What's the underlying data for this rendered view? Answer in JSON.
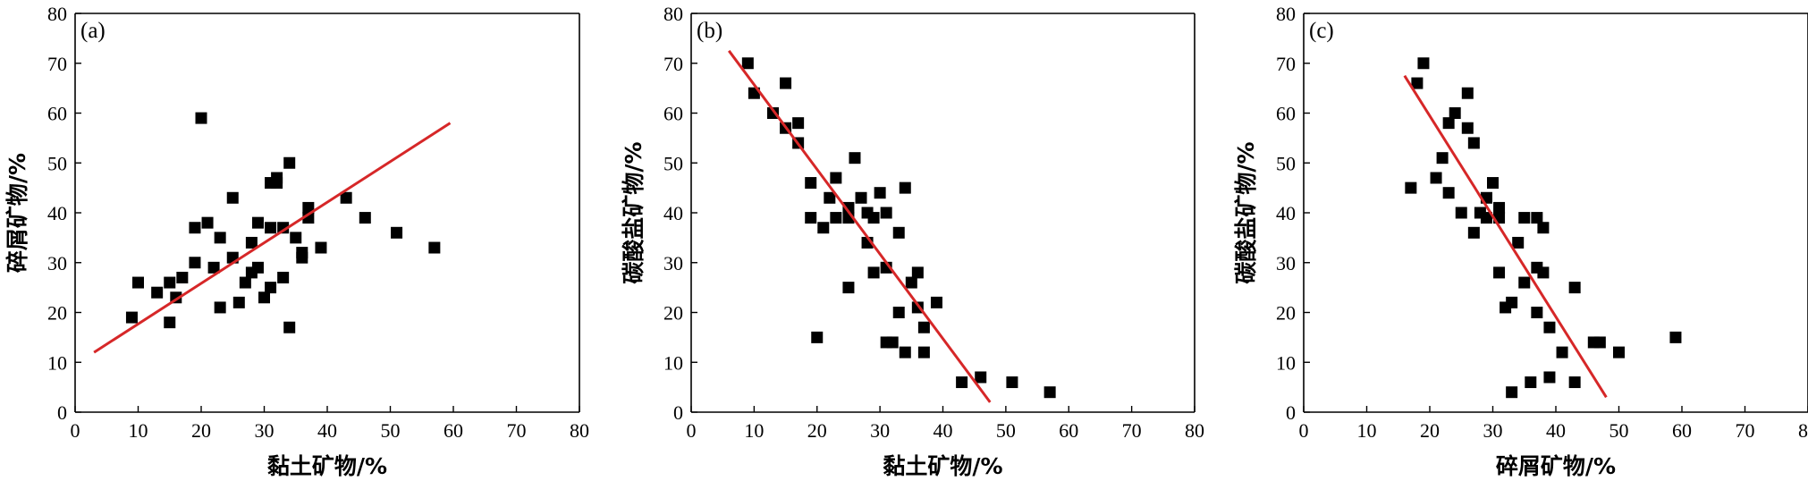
{
  "chart_data": [
    {
      "type": "scatter",
      "panel_label": "(a)",
      "xlabel": "黏土矿物/%",
      "ylabel": "碎屑矿物/%",
      "xlim": [
        0,
        80
      ],
      "ylim": [
        0,
        80
      ],
      "xticks": [
        "0",
        "10",
        "20",
        "30",
        "40",
        "50",
        "60",
        "70",
        "80"
      ],
      "yticks": [
        "0",
        "10",
        "20",
        "30",
        "40",
        "50",
        "60",
        "70",
        "80"
      ],
      "grid": false,
      "marker_color": "#000000",
      "points": [
        [
          9,
          19
        ],
        [
          10,
          26
        ],
        [
          13,
          24
        ],
        [
          15,
          26
        ],
        [
          15,
          18
        ],
        [
          16,
          23
        ],
        [
          17,
          27
        ],
        [
          19,
          30
        ],
        [
          19,
          37
        ],
        [
          20,
          59
        ],
        [
          21,
          38
        ],
        [
          22,
          29
        ],
        [
          23,
          35
        ],
        [
          23,
          21
        ],
        [
          25,
          43
        ],
        [
          25,
          31
        ],
        [
          26,
          22
        ],
        [
          27,
          26
        ],
        [
          28,
          34
        ],
        [
          28,
          28
        ],
        [
          29,
          38
        ],
        [
          29,
          29
        ],
        [
          30,
          23
        ],
        [
          31,
          25
        ],
        [
          31,
          37
        ],
        [
          31,
          46
        ],
        [
          32,
          46
        ],
        [
          32,
          47
        ],
        [
          33,
          27
        ],
        [
          33,
          37
        ],
        [
          34,
          50
        ],
        [
          34,
          17
        ],
        [
          35,
          35
        ],
        [
          36,
          32
        ],
        [
          36,
          31
        ],
        [
          37,
          39
        ],
        [
          37,
          41
        ],
        [
          39,
          33
        ],
        [
          43,
          43
        ],
        [
          46,
          39
        ],
        [
          51,
          36
        ],
        [
          57,
          33
        ]
      ],
      "fit_line": {
        "color": "#d62728",
        "x": [
          3,
          59.5
        ],
        "y": [
          12,
          58
        ]
      }
    },
    {
      "type": "scatter",
      "panel_label": "(b)",
      "xlabel": "黏土矿物/%",
      "ylabel": "碳酸盐矿物/%",
      "xlim": [
        0,
        80
      ],
      "ylim": [
        0,
        80
      ],
      "xticks": [
        "0",
        "10",
        "20",
        "30",
        "40",
        "50",
        "60",
        "70",
        "80"
      ],
      "yticks": [
        "0",
        "10",
        "20",
        "30",
        "40",
        "50",
        "60",
        "70",
        "80"
      ],
      "grid": false,
      "marker_color": "#000000",
      "points": [
        [
          9,
          70
        ],
        [
          10,
          64
        ],
        [
          13,
          60
        ],
        [
          15,
          66
        ],
        [
          15,
          57
        ],
        [
          17,
          58
        ],
        [
          17,
          54
        ],
        [
          19,
          46
        ],
        [
          19,
          39
        ],
        [
          20,
          15
        ],
        [
          21,
          37
        ],
        [
          22,
          43
        ],
        [
          23,
          47
        ],
        [
          23,
          39
        ],
        [
          25,
          41
        ],
        [
          25,
          39
        ],
        [
          25,
          25
        ],
        [
          26,
          51
        ],
        [
          27,
          43
        ],
        [
          28,
          40
        ],
        [
          28,
          34
        ],
        [
          29,
          39
        ],
        [
          29,
          28
        ],
        [
          30,
          44
        ],
        [
          31,
          40
        ],
        [
          31,
          29
        ],
        [
          31,
          14
        ],
        [
          32,
          14
        ],
        [
          33,
          36
        ],
        [
          33,
          20
        ],
        [
          34,
          45
        ],
        [
          34,
          12
        ],
        [
          35,
          26
        ],
        [
          36,
          28
        ],
        [
          36,
          21
        ],
        [
          37,
          17
        ],
        [
          37,
          12
        ],
        [
          39,
          22
        ],
        [
          43,
          6
        ],
        [
          46,
          7
        ],
        [
          51,
          6
        ],
        [
          57,
          4
        ]
      ],
      "fit_line": {
        "color": "#d62728",
        "x": [
          6,
          47.5
        ],
        "y": [
          72.5,
          2
        ]
      }
    },
    {
      "type": "scatter",
      "panel_label": "(c)",
      "xlabel": "碎屑矿物/%",
      "ylabel": "碳酸盐矿物/%",
      "xlim": [
        0,
        80
      ],
      "ylim": [
        0,
        80
      ],
      "xticks": [
        "0",
        "10",
        "20",
        "30",
        "40",
        "50",
        "60",
        "70",
        "80"
      ],
      "yticks": [
        "0",
        "10",
        "20",
        "30",
        "40",
        "50",
        "60",
        "70",
        "80"
      ],
      "grid": false,
      "marker_color": "#000000",
      "points": [
        [
          17,
          45
        ],
        [
          18,
          66
        ],
        [
          19,
          70
        ],
        [
          21,
          47
        ],
        [
          22,
          51
        ],
        [
          23,
          44
        ],
        [
          23,
          58
        ],
        [
          24,
          60
        ],
        [
          25,
          40
        ],
        [
          26,
          57
        ],
        [
          26,
          64
        ],
        [
          27,
          54
        ],
        [
          27,
          36
        ],
        [
          28,
          40
        ],
        [
          29,
          39
        ],
        [
          29,
          43
        ],
        [
          30,
          46
        ],
        [
          31,
          39
        ],
        [
          31,
          41
        ],
        [
          31,
          28
        ],
        [
          32,
          21
        ],
        [
          33,
          22
        ],
        [
          33,
          4
        ],
        [
          34,
          34
        ],
        [
          35,
          39
        ],
        [
          35,
          26
        ],
        [
          36,
          6
        ],
        [
          37,
          39
        ],
        [
          37,
          29
        ],
        [
          37,
          20
        ],
        [
          38,
          37
        ],
        [
          38,
          28
        ],
        [
          39,
          17
        ],
        [
          39,
          7
        ],
        [
          41,
          12
        ],
        [
          43,
          25
        ],
        [
          43,
          6
        ],
        [
          46,
          14
        ],
        [
          47,
          14
        ],
        [
          50,
          12
        ],
        [
          59,
          15
        ]
      ],
      "fit_line": {
        "color": "#d62728",
        "x": [
          16,
          48
        ],
        "y": [
          67.5,
          3
        ]
      }
    }
  ]
}
